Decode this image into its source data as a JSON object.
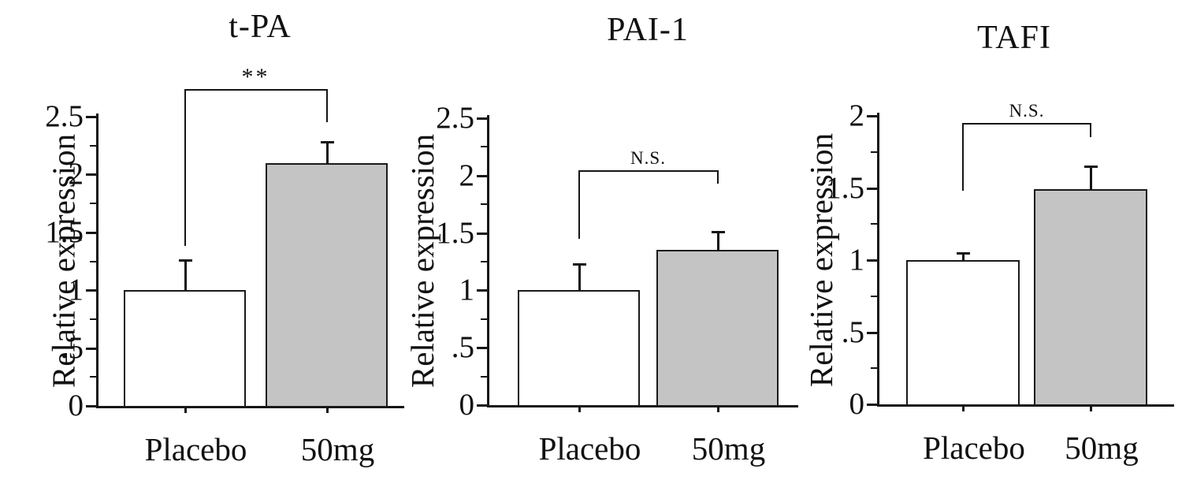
{
  "figure": {
    "background": "#ffffff",
    "line_color": "#151515",
    "description_text": ""
  },
  "chart_data": [
    {
      "type": "bar",
      "title": "t-PA",
      "ylabel": "Relative expression",
      "xlabel": "",
      "categories": [
        "Placebo",
        "50mg"
      ],
      "values": [
        1.0,
        2.1
      ],
      "errors_plus": [
        0.26,
        0.18
      ],
      "bar_fills": [
        "#ffffff",
        "#c4c4c4"
      ],
      "ylim": [
        0,
        2.5
      ],
      "yticks": [
        0,
        0.5,
        1.0,
        1.5,
        2.0,
        2.5
      ],
      "ytick_labels": [
        "0",
        ".5",
        "1",
        "1.5",
        "2",
        "2.5"
      ],
      "yticks_minor": [
        0.25,
        0.75,
        1.25,
        1.75,
        2.25
      ],
      "grid": false,
      "legend": null,
      "significance": {
        "label": "**",
        "bracket_y": 2.74,
        "left_leg_to": 1.38,
        "right_leg_to": 2.45
      }
    },
    {
      "type": "bar",
      "title": "PAI-1",
      "ylabel": "Relative expression",
      "xlabel": "",
      "categories": [
        "Placebo",
        "50mg"
      ],
      "values": [
        1.0,
        1.35
      ],
      "errors_plus": [
        0.23,
        0.16
      ],
      "bar_fills": [
        "#ffffff",
        "#c4c4c4"
      ],
      "ylim": [
        0,
        2.5
      ],
      "yticks": [
        0,
        0.5,
        1.0,
        1.5,
        2.0,
        2.5
      ],
      "ytick_labels": [
        "0",
        ".5",
        "1",
        "1.5",
        "2",
        "2.5"
      ],
      "yticks_minor": [
        0.25,
        0.75,
        1.25,
        1.75,
        2.25
      ],
      "grid": false,
      "legend": null,
      "significance": {
        "label": "N.S.",
        "bracket_y": 2.05,
        "left_leg_to": 1.45,
        "right_leg_to": 1.93
      }
    },
    {
      "type": "bar",
      "title": "TAFI",
      "ylabel": "Relative expression",
      "xlabel": "",
      "categories": [
        "Placebo",
        "50mg"
      ],
      "values": [
        1.0,
        1.49
      ],
      "errors_plus": [
        0.05,
        0.16
      ],
      "bar_fills": [
        "#ffffff",
        "#c4c4c4"
      ],
      "ylim": [
        0,
        2
      ],
      "yticks": [
        0,
        0.5,
        1.0,
        1.5,
        2.0
      ],
      "ytick_labels": [
        "0",
        ".5",
        "1",
        "1.5",
        "2"
      ],
      "yticks_minor": [
        0.25,
        0.75,
        1.25,
        1.75
      ],
      "grid": false,
      "legend": null,
      "significance": {
        "label": "N.S.",
        "bracket_y": 1.95,
        "left_leg_to": 1.48,
        "right_leg_to": 1.85
      }
    }
  ]
}
